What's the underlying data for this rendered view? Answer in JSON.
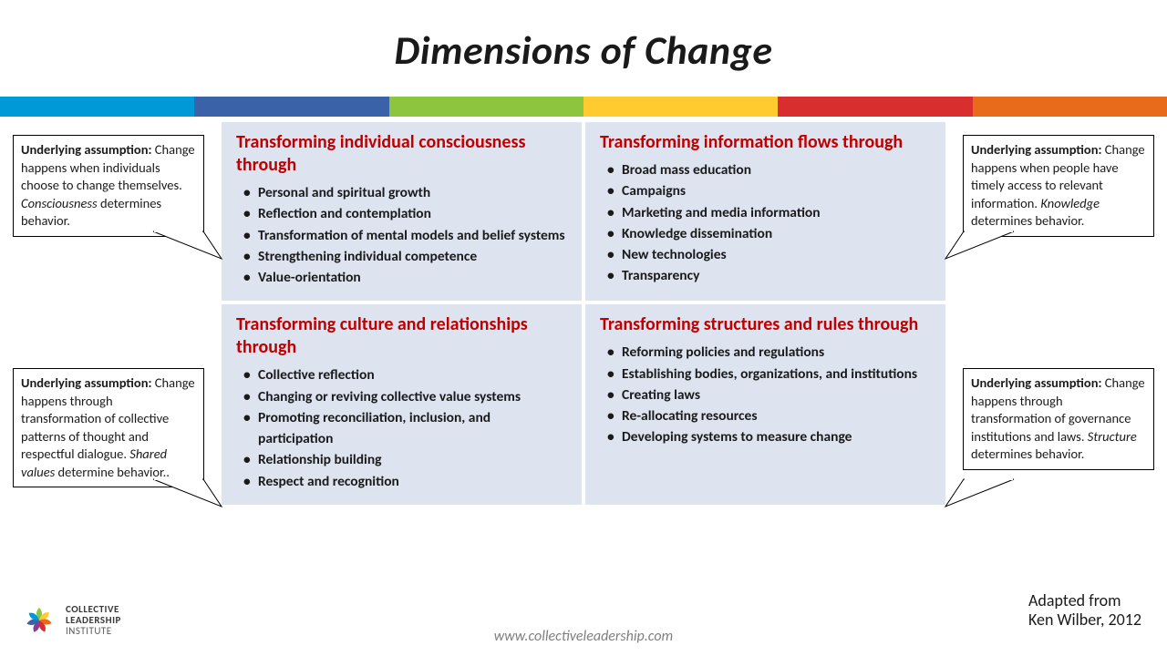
{
  "title": "Dimensions of Change",
  "color_bar": [
    "#0099d8",
    "#3a62a8",
    "#8cc63e",
    "#ffcb2f",
    "#d82e2e",
    "#e86b1c"
  ],
  "quadrants": {
    "tl": {
      "heading": "Transforming individual consciousness through",
      "bullets": [
        "Personal and spiritual growth",
        "Reflection and contemplation",
        "Transformation of mental models and belief systems",
        "Strengthening individual competence",
        "Value-orientation"
      ]
    },
    "tr": {
      "heading": "Transforming information flows through",
      "bullets": [
        "Broad mass education",
        "Campaigns",
        "Marketing and media information",
        "Knowledge dissemination",
        "New technologies",
        "Transparency"
      ]
    },
    "bl": {
      "heading": "Transforming culture and relationships through",
      "bullets": [
        "Collective reflection",
        "Changing or reviving collective value systems",
        "Promoting reconciliation, inclusion, and participation",
        "Relationship building",
        "Respect and recognition"
      ]
    },
    "br": {
      "heading": "Transforming structures and rules through",
      "bullets": [
        "Reforming policies and regulations",
        "Establishing bodies, organizations, and institutions",
        "Creating laws",
        "Re-allocating resources",
        "Developing systems to measure change"
      ]
    }
  },
  "callouts": {
    "label": "Underlying  assumption:",
    "tl": {
      "pre": "Change happens when individuals choose to change themselves. ",
      "emph": "Consciousness",
      "post": " determines behavior."
    },
    "tr": {
      "pre": "Change happens when people have timely access to relevant information. ",
      "emph": "Knowledge",
      "post": " determines behavior."
    },
    "bl": {
      "pre": "Change happens through transformation of collective patterns of thought and respectful dialogue. ",
      "emph": "Shared values",
      "post": " determine behavior.."
    },
    "br": {
      "pre": "Change happens through transformation of governance institutions and laws. ",
      "emph": "Structure",
      "post": " determines behavior."
    }
  },
  "attribution_line1": "Adapted from",
  "attribution_line2": "Ken Wilber, 2012",
  "url": "www.collectiveleadership.com",
  "logo": {
    "line1": "COLLECTIVE",
    "line2": "LEADERSHIP",
    "line3": "INSTITUTE"
  },
  "style": {
    "heading_color": "#c00000",
    "cell_bg": "#dde4f0",
    "title_fontsize": 44,
    "body_fontsize": 15.5,
    "callout_fontsize": 14.5
  }
}
